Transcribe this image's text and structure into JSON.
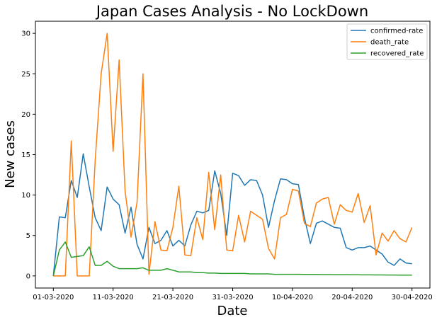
{
  "chart_data": {
    "type": "line",
    "title": "Japan Cases Analysis - No LockDown",
    "xlabel": "Date",
    "ylabel": "New cases",
    "x_ticks": [
      "01-03-2020",
      "11-03-2020",
      "21-03-2020",
      "31-03-2020",
      "10-04-2020",
      "20-04-2020",
      "30-04-2020"
    ],
    "x_tick_days": [
      0,
      10,
      20,
      30,
      40,
      50,
      60
    ],
    "xlim": [
      -3,
      63
    ],
    "ylim": [
      -1.5,
      31.5
    ],
    "y_ticks": [
      0,
      5,
      10,
      15,
      20,
      25,
      30
    ],
    "legend_position": "top-right",
    "grid": false,
    "series": [
      {
        "name": "confirmed-rate",
        "color": "#1f77b4",
        "values": [
          0,
          7.3,
          7.2,
          11.8,
          9.7,
          15.1,
          11.0,
          7.2,
          5.6,
          11.0,
          9.5,
          8.8,
          5.3,
          8.5,
          3.9,
          2.1,
          6.0,
          4.0,
          4.4,
          5.6,
          3.7,
          4.4,
          3.7,
          6.3,
          8.0,
          7.8,
          8.1,
          13.0,
          10.2,
          5.0,
          12.7,
          12.4,
          11.2,
          11.9,
          11.8,
          10.0,
          6.0,
          9.3,
          12.0,
          11.9,
          11.4,
          11.3,
          7.2,
          4.0,
          6.5,
          6.8,
          6.4,
          6.0,
          5.9,
          3.5,
          3.2,
          3.5,
          3.5,
          3.7,
          3.2,
          2.7,
          1.7,
          1.3,
          2.1,
          1.6,
          1.5
        ]
      },
      {
        "name": "death_rate",
        "color": "#ff7f0e",
        "values": [
          0,
          0,
          0,
          16.7,
          0,
          0,
          0,
          14.3,
          25.0,
          30.0,
          15.4,
          26.7,
          10.5,
          4.8,
          9.1,
          25.0,
          0.2,
          6.7,
          3.2,
          3.1,
          6.0,
          11.1,
          2.6,
          2.5,
          7.2,
          4.5,
          12.8,
          5.7,
          12.5,
          3.2,
          3.1,
          7.5,
          4.2,
          8.0,
          7.5,
          7.0,
          3.4,
          2.1,
          7.2,
          7.6,
          10.7,
          10.5,
          6.5,
          6.1,
          9.0,
          9.5,
          9.7,
          6.4,
          8.8,
          8.1,
          7.9,
          10.2,
          6.6,
          8.7,
          2.6,
          5.3,
          4.3,
          5.6,
          4.6,
          4.2,
          6.0
        ]
      },
      {
        "name": "recovered_rate",
        "color": "#2ca02c",
        "values": [
          0,
          3.2,
          4.2,
          2.3,
          2.4,
          2.5,
          3.6,
          1.3,
          1.3,
          1.8,
          1.2,
          0.9,
          0.9,
          0.9,
          0.9,
          1.0,
          0.7,
          0.7,
          0.7,
          0.9,
          0.7,
          0.5,
          0.5,
          0.5,
          0.4,
          0.4,
          0.35,
          0.35,
          0.3,
          0.3,
          0.3,
          0.3,
          0.3,
          0.25,
          0.25,
          0.25,
          0.25,
          0.2,
          0.2,
          0.2,
          0.2,
          0.2,
          0.18,
          0.18,
          0.18,
          0.16,
          0.16,
          0.15,
          0.15,
          0.15,
          0.14,
          0.14,
          0.13,
          0.13,
          0.12,
          0.12,
          0.11,
          0.11,
          0.1,
          0.1,
          0.1
        ]
      }
    ]
  }
}
